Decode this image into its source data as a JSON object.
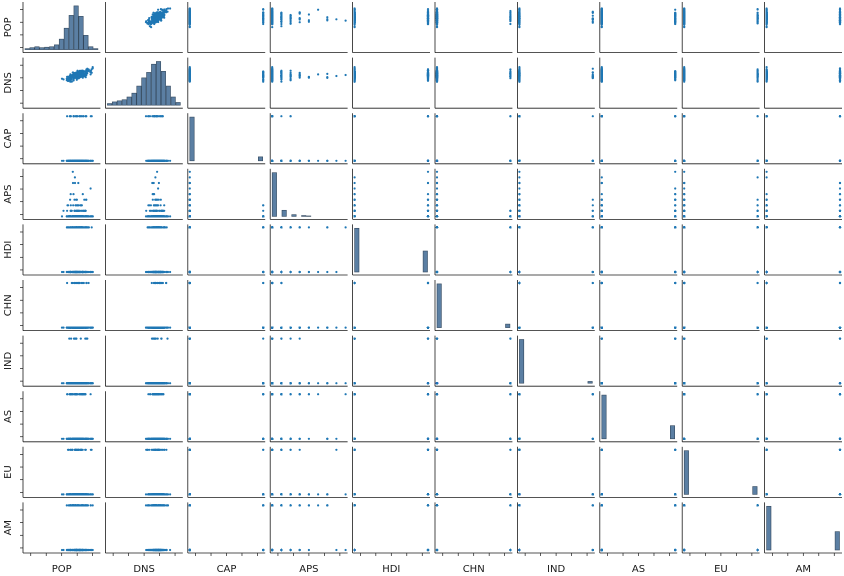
{
  "chart_data": {
    "type": "scatter",
    "subtype": "pair-plot",
    "variables": [
      "POP",
      "DNS",
      "CAP",
      "APS",
      "HDI",
      "CHN",
      "IND",
      "AS",
      "EU",
      "AM"
    ],
    "diagonal": "histogram",
    "off_diagonal": "scatter",
    "tick_labels": "none",
    "grid": false,
    "legend": "none",
    "colors": {
      "marker": "#1f77b4",
      "bar_fill": "#5b7fa3",
      "bar_edge": "#34495e",
      "axis": "#1a1a1a"
    },
    "histograms": {
      "POP": [
        2,
        4,
        6,
        4,
        5,
        6,
        10,
        22,
        45,
        72,
        92,
        70,
        30,
        6,
        2
      ],
      "DNS": [
        3,
        6,
        8,
        10,
        15,
        22,
        35,
        50,
        60,
        75,
        80,
        62,
        35,
        15,
        5
      ],
      "CAP": [
        100,
        0,
        0,
        0,
        0,
        0,
        0,
        0,
        0,
        0,
        0,
        0,
        0,
        0,
        9
      ],
      "APS": [
        100,
        0,
        14,
        0,
        4,
        0,
        2,
        1,
        0,
        0,
        0,
        0,
        0,
        0,
        0
      ],
      "HDI": [
        100,
        0,
        0,
        0,
        0,
        0,
        0,
        0,
        0,
        0,
        0,
        0,
        0,
        0,
        48
      ],
      "CHN": [
        100,
        0,
        0,
        0,
        0,
        0,
        0,
        0,
        0,
        0,
        0,
        0,
        0,
        0,
        8
      ],
      "IND": [
        100,
        0,
        0,
        0,
        0,
        0,
        0,
        0,
        0,
        0,
        0,
        0,
        0,
        0,
        4
      ],
      "AS": [
        100,
        0,
        0,
        0,
        0,
        0,
        0,
        0,
        0,
        0,
        0,
        0,
        0,
        0,
        30
      ],
      "EU": [
        100,
        0,
        0,
        0,
        0,
        0,
        0,
        0,
        0,
        0,
        0,
        0,
        0,
        0,
        18
      ],
      "AM": [
        100,
        0,
        0,
        0,
        0,
        0,
        0,
        0,
        0,
        0,
        0,
        0,
        0,
        0,
        42
      ]
    },
    "discrete_levels": {
      "CAP": [
        0,
        1
      ],
      "APS": [
        0,
        1,
        2,
        3,
        4,
        5,
        6,
        7,
        8
      ],
      "HDI": [
        0,
        1
      ],
      "CHN": [
        0,
        1
      ],
      "IND": [
        0,
        1
      ],
      "AS": [
        0,
        1
      ],
      "EU": [
        0,
        1
      ],
      "AM": [
        0,
        1
      ]
    },
    "continuous_ranges": {
      "POP": [
        0,
        1
      ],
      "DNS": [
        0,
        1
      ]
    }
  }
}
